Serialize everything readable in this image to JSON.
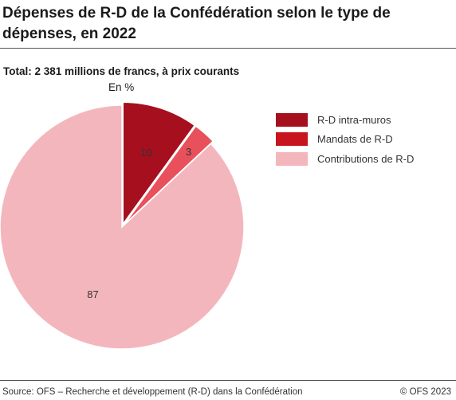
{
  "title": "Dépenses de R-D de la Confédération selon le type de dépenses, en 2022",
  "subtitle": "Total: 2 381 millions de francs, à prix courants",
  "unit": "En %",
  "footer": {
    "source": "Source: OFS – Recherche et développement (R-D) dans la Confédération",
    "copyright": "© OFS 2023"
  },
  "chart_data": {
    "type": "pie",
    "title": "Dépenses de R-D de la Confédération selon le type de dépenses, en 2022",
    "subtitle": "Total: 2 381 millions de francs, à prix courants",
    "unit": "En %",
    "legend_position": "right",
    "slices": [
      {
        "name": "R-D intra-muros",
        "value": 10,
        "label": "10",
        "color": "#a50f1e",
        "exploded": true
      },
      {
        "name": "Mandats de R-D",
        "value": 3,
        "label": "3",
        "color": "#e8505b",
        "exploded": true
      },
      {
        "name": "Contributions de R-D",
        "value": 87,
        "label": "87",
        "color": "#f4b6bd",
        "exploded": false
      }
    ]
  },
  "legend": [
    {
      "label": "R-D intra-muros",
      "color": "#a50f1e"
    },
    {
      "label": "Mandats de R-D",
      "color": "#c8141e"
    },
    {
      "label": "Contributions de R-D",
      "color": "#f4b6bd"
    }
  ]
}
